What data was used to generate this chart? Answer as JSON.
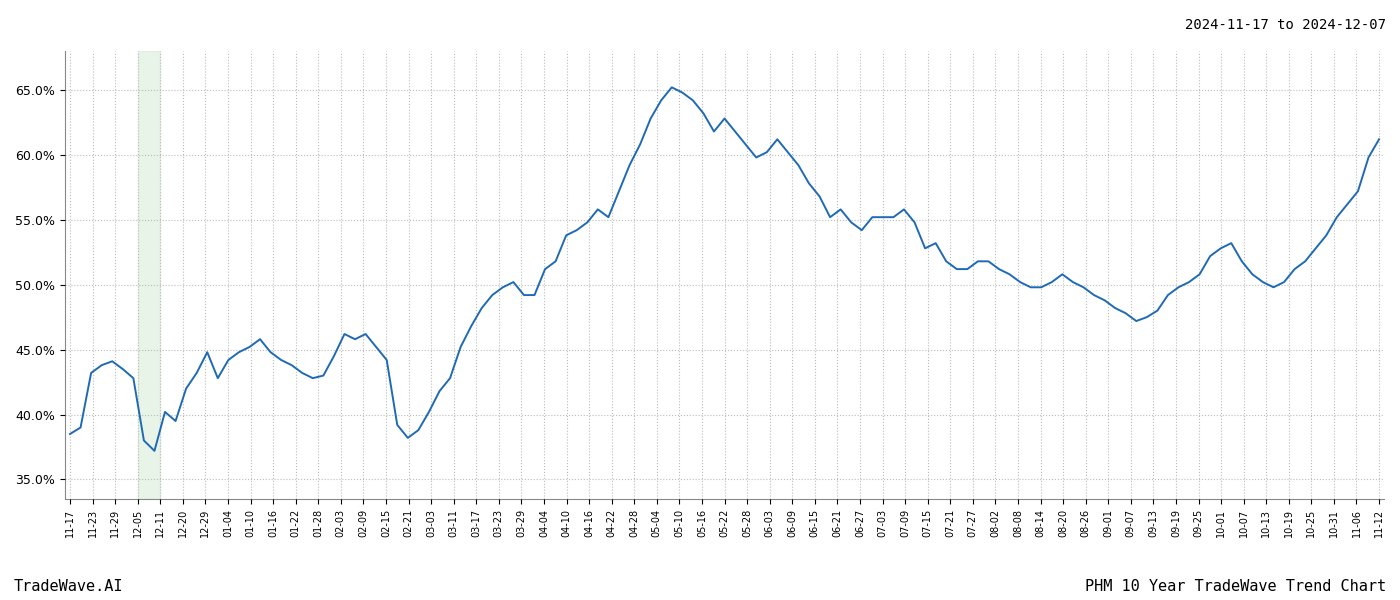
{
  "title_top_right": "2024-11-17 to 2024-12-07",
  "title_bottom_left": "TradeWave.AI",
  "title_bottom_right": "PHM 10 Year TradeWave Trend Chart",
  "line_color": "#1f6ab5",
  "highlight_color": "#cce8cc",
  "highlight_alpha": 0.45,
  "background_color": "#ffffff",
  "grid_color": "#bbbbbb",
  "grid_style": "dotted",
  "y_ticks": [
    35.0,
    40.0,
    45.0,
    50.0,
    55.0,
    60.0,
    65.0
  ],
  "ylim": [
    33.5,
    68.0
  ],
  "x_tick_labels": [
    "11-17",
    "11-23",
    "11-29",
    "12-05",
    "12-11",
    "12-20",
    "12-29",
    "01-04",
    "01-10",
    "01-16",
    "01-22",
    "01-28",
    "02-03",
    "02-09",
    "02-15",
    "02-21",
    "03-03",
    "03-11",
    "03-17",
    "03-23",
    "03-29",
    "04-04",
    "04-10",
    "04-16",
    "04-22",
    "04-28",
    "05-04",
    "05-10",
    "05-16",
    "05-22",
    "05-28",
    "06-03",
    "06-09",
    "06-15",
    "06-21",
    "06-27",
    "07-03",
    "07-09",
    "07-15",
    "07-21",
    "07-27",
    "08-02",
    "08-08",
    "08-14",
    "08-20",
    "08-26",
    "09-01",
    "09-07",
    "09-13",
    "09-19",
    "09-25",
    "10-01",
    "10-07",
    "10-13",
    "10-19",
    "10-25",
    "10-31",
    "11-06",
    "11-12"
  ],
  "highlight_start_label": "12-05",
  "highlight_end_label": "12-11",
  "values": [
    38.5,
    39.0,
    43.2,
    43.8,
    44.1,
    43.5,
    42.8,
    38.0,
    37.2,
    40.2,
    39.5,
    42.0,
    43.2,
    44.8,
    42.8,
    44.2,
    44.8,
    45.2,
    45.8,
    44.8,
    44.2,
    43.8,
    43.2,
    42.8,
    43.0,
    44.5,
    46.2,
    45.8,
    46.2,
    45.2,
    44.2,
    39.2,
    38.2,
    38.8,
    40.2,
    41.8,
    42.8,
    45.2,
    46.8,
    48.2,
    49.2,
    49.8,
    50.2,
    49.2,
    49.2,
    51.2,
    51.8,
    53.8,
    54.2,
    54.8,
    55.8,
    55.2,
    57.2,
    59.2,
    60.8,
    62.8,
    64.2,
    65.2,
    64.8,
    64.2,
    63.2,
    61.8,
    62.8,
    61.8,
    60.8,
    59.8,
    60.2,
    61.2,
    60.2,
    59.2,
    57.8,
    56.8,
    55.2,
    55.8,
    54.8,
    54.2,
    55.2,
    55.2,
    55.2,
    55.8,
    54.8,
    52.8,
    53.2,
    51.8,
    51.2,
    51.2,
    51.8,
    51.8,
    51.2,
    50.8,
    50.2,
    49.8,
    49.8,
    50.2,
    50.8,
    50.2,
    49.8,
    49.2,
    48.8,
    48.2,
    47.8,
    47.2,
    47.5,
    48.0,
    49.2,
    49.8,
    50.2,
    50.8,
    52.2,
    52.8,
    53.2,
    51.8,
    50.8,
    50.2,
    49.8,
    50.2,
    51.2,
    51.8,
    52.8,
    53.8,
    55.2,
    56.2,
    57.2,
    59.8,
    61.2
  ]
}
